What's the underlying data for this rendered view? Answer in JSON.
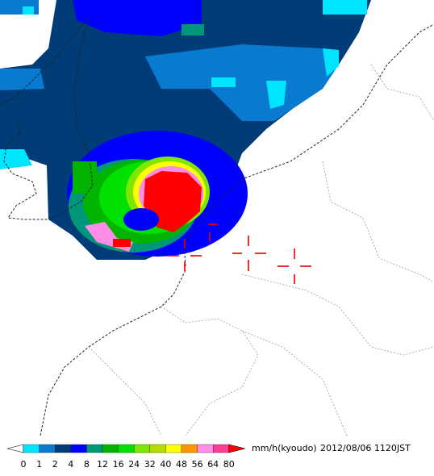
{
  "legend": {
    "ticks": [
      0,
      1,
      2,
      4,
      8,
      12,
      16,
      24,
      32,
      40,
      48,
      56,
      64,
      80
    ],
    "colors": [
      "#00e5ff",
      "#0a7ad0",
      "#003c78",
      "#0000ff",
      "#00967a",
      "#00b400",
      "#00e100",
      "#7ee600",
      "#b4dc00",
      "#ffff00",
      "#ff9600",
      "#ff8ce6",
      "#ff3c96"
    ],
    "under_color": "#ffffff",
    "over_color": "#ff0000",
    "unit": "mm/h(kyoudo)",
    "timestamp": "2012/08/06 1120JST"
  }
}
